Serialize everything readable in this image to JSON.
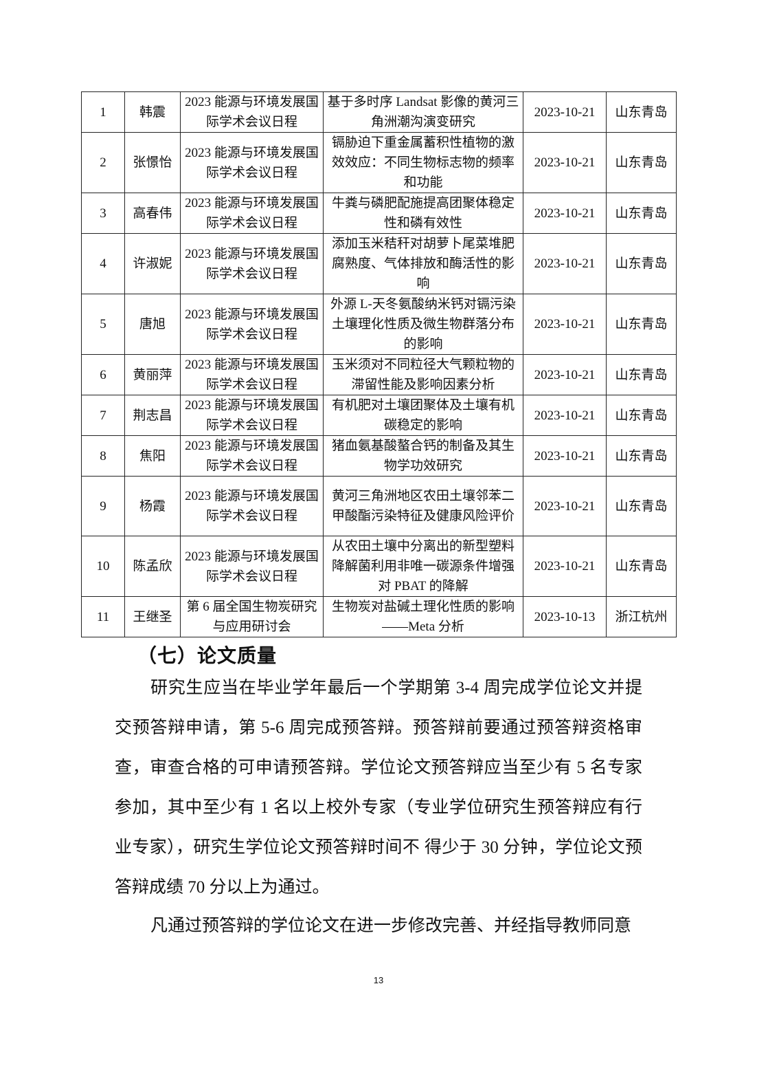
{
  "table": {
    "rows": [
      {
        "no": "1",
        "name": "韩震",
        "conference": "2023 能源与环境发展国际学术会议日程",
        "title": "基于多时序 Landsat 影像的黄河三角洲潮沟演变研究",
        "date": "2023-10-21",
        "place": "山东青岛"
      },
      {
        "no": "2",
        "name": "张憬怡",
        "conference": "2023 能源与环境发展国际学术会议日程",
        "title": "镉胁迫下重金属蓄积性植物的激效效应：不同生物标志物的频率和功能",
        "date": "2023-10-21",
        "place": "山东青岛"
      },
      {
        "no": "3",
        "name": "高春伟",
        "conference": "2023 能源与环境发展国际学术会议日程",
        "title": "牛粪与磷肥配施提高团聚体稳定性和磷有效性",
        "date": "2023-10-21",
        "place": "山东青岛"
      },
      {
        "no": "4",
        "name": "许淑妮",
        "conference": "2023 能源与环境发展国际学术会议日程",
        "title": "添加玉米秸秆对胡萝卜尾菜堆肥腐熟度、气体排放和酶活性的影响",
        "date": "2023-10-21",
        "place": "山东青岛"
      },
      {
        "no": "5",
        "name": "唐旭",
        "conference": "2023 能源与环境发展国际学术会议日程",
        "title": "外源 L-天冬氨酸纳米钙对镉污染土壤理化性质及微生物群落分布的影响",
        "date": "2023-10-21",
        "place": "山东青岛"
      },
      {
        "no": "6",
        "name": "黄丽萍",
        "conference": "2023 能源与环境发展国际学术会议日程",
        "title": "玉米须对不同粒径大气颗粒物的滞留性能及影响因素分析",
        "date": "2023-10-21",
        "place": "山东青岛"
      },
      {
        "no": "7",
        "name": "荆志昌",
        "conference": "2023 能源与环境发展国际学术会议日程",
        "title": "有机肥对土壤团聚体及土壤有机碳稳定的影响",
        "date": "2023-10-21",
        "place": "山东青岛"
      },
      {
        "no": "8",
        "name": "焦阳",
        "conference": "2023 能源与环境发展国际学术会议日程",
        "title": "猪血氨基酸螯合钙的制备及其生物学功效研究",
        "date": "2023-10-21",
        "place": "山东青岛"
      },
      {
        "no": "9",
        "name": "杨霞",
        "conference": "2023 能源与环境发展国际学术会议日程",
        "title": "黄河三角洲地区农田土壤邻苯二甲酸酯污染特征及健康风险评价",
        "date": "2023-10-21",
        "place": "山东青岛"
      },
      {
        "no": "10",
        "name": "陈孟欣",
        "conference": "2023 能源与环境发展国际学术会议日程",
        "title": "从农田土壤中分离出的新型塑料降解菌利用非唯一碳源条件增强对 PBAT 的降解",
        "date": "2023-10-21",
        "place": "山东青岛"
      },
      {
        "no": "11",
        "name": "王继圣",
        "conference": "第 6 届全国生物炭研究与应用研讨会",
        "title": "生物炭对盐碱土理化性质的影响——Meta 分析",
        "date": "2023-10-13",
        "place": "浙江杭州"
      }
    ]
  },
  "section": {
    "heading": "（七）论文质量",
    "paragraphs": [
      "研究生应当在毕业学年最后一个学期第 3-4 周完成学位论文并提交预答辩申请，第 5-6 周完成预答辩。预答辩前要通过预答辩资格审查，审查合格的可申请预答辩。学位论文预答辩应当至少有 5 名专家参加，其中至少有 1 名以上校外专家（专业学位研究生预答辩应有行业专家），研究生学位论文预答辩时间不 得少于 30 分钟，学位论文预答辩成绩 70 分以上为通过。",
      "凡通过预答辩的学位论文在进一步修改完善、并经指导教师同意"
    ]
  },
  "page_number": "13"
}
